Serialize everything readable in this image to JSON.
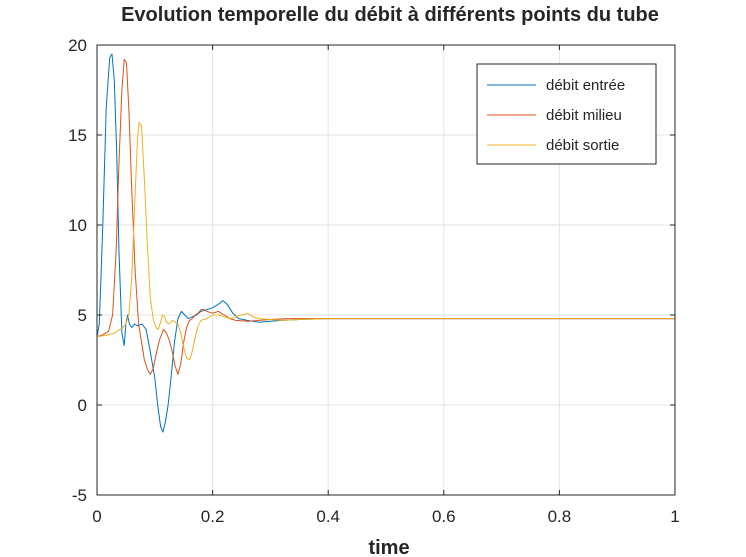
{
  "chart_data": {
    "type": "line",
    "title": "Evolution temporelle du débit à différents points du tube",
    "xlabel": "time",
    "ylabel": "",
    "xlim": [
      0,
      1
    ],
    "ylim": [
      -5,
      20
    ],
    "xticks": [
      0,
      0.2,
      0.4,
      0.6,
      0.8,
      1
    ],
    "xtick_labels": [
      "0",
      "0.2",
      "0.4",
      "0.6",
      "0.8",
      "1"
    ],
    "yticks": [
      -5,
      0,
      5,
      10,
      15,
      20
    ],
    "ytick_labels": [
      "-5",
      "0",
      "5",
      "10",
      "15",
      "20"
    ],
    "grid": true,
    "legend_position": "top-right",
    "series": [
      {
        "name": "débit entrée",
        "color": "#0072BD",
        "x": [
          0,
          0.004,
          0.01,
          0.016,
          0.022,
          0.026,
          0.03,
          0.034,
          0.038,
          0.043,
          0.047,
          0.05,
          0.053,
          0.056,
          0.06,
          0.065,
          0.07,
          0.078,
          0.085,
          0.092,
          0.1,
          0.105,
          0.11,
          0.114,
          0.118,
          0.123,
          0.128,
          0.134,
          0.14,
          0.146,
          0.152,
          0.158,
          0.165,
          0.172,
          0.18,
          0.19,
          0.2,
          0.21,
          0.218,
          0.225,
          0.235,
          0.245,
          0.26,
          0.28,
          0.3,
          0.32,
          0.35,
          0.4,
          0.5,
          0.7,
          1.0
        ],
        "y": [
          3.8,
          4.5,
          10.0,
          16.5,
          19.3,
          19.5,
          18.0,
          14.0,
          8.5,
          4.0,
          3.3,
          4.5,
          5.0,
          4.5,
          4.3,
          4.5,
          4.4,
          4.5,
          4.2,
          3.0,
          1.5,
          0.0,
          -1.2,
          -1.5,
          -1.0,
          0.0,
          1.5,
          3.5,
          4.8,
          5.2,
          5.0,
          4.8,
          4.9,
          5.0,
          5.2,
          5.3,
          5.4,
          5.6,
          5.8,
          5.6,
          5.1,
          4.8,
          4.7,
          4.6,
          4.65,
          4.7,
          4.75,
          4.8,
          4.8,
          4.8,
          4.8
        ]
      },
      {
        "name": "débit milieu",
        "color": "#D95319",
        "x": [
          0,
          0.01,
          0.02,
          0.027,
          0.033,
          0.038,
          0.043,
          0.047,
          0.051,
          0.055,
          0.06,
          0.066,
          0.072,
          0.077,
          0.082,
          0.087,
          0.092,
          0.097,
          0.102,
          0.108,
          0.115,
          0.12,
          0.125,
          0.13,
          0.135,
          0.14,
          0.145,
          0.15,
          0.155,
          0.16,
          0.165,
          0.17,
          0.175,
          0.18,
          0.185,
          0.19,
          0.2,
          0.21,
          0.22,
          0.23,
          0.24,
          0.26,
          0.28,
          0.3,
          0.33,
          0.36,
          0.4,
          0.5,
          0.7,
          1.0
        ],
        "y": [
          3.8,
          3.9,
          4.1,
          5.0,
          8.5,
          13.5,
          17.5,
          19.2,
          19.0,
          16.5,
          12.0,
          7.5,
          4.5,
          3.5,
          2.5,
          2.0,
          1.7,
          2.0,
          2.8,
          3.6,
          4.2,
          4.0,
          3.6,
          3.0,
          2.2,
          1.7,
          2.3,
          3.5,
          4.3,
          4.7,
          4.8,
          5.0,
          5.1,
          5.3,
          5.3,
          5.2,
          5.1,
          5.2,
          5.0,
          4.8,
          4.7,
          4.65,
          4.7,
          4.75,
          4.8,
          4.8,
          4.8,
          4.8,
          4.8,
          4.8
        ]
      },
      {
        "name": "débit sortie",
        "color": "#EDB120",
        "x": [
          0,
          0.01,
          0.02,
          0.03,
          0.04,
          0.045,
          0.05,
          0.055,
          0.06,
          0.065,
          0.07,
          0.073,
          0.077,
          0.082,
          0.087,
          0.092,
          0.097,
          0.102,
          0.106,
          0.11,
          0.113,
          0.117,
          0.12,
          0.125,
          0.13,
          0.135,
          0.14,
          0.145,
          0.15,
          0.155,
          0.16,
          0.165,
          0.17,
          0.175,
          0.18,
          0.19,
          0.2,
          0.21,
          0.22,
          0.23,
          0.24,
          0.25,
          0.26,
          0.27,
          0.28,
          0.3,
          0.32,
          0.35,
          0.4,
          0.5,
          0.7,
          1.0
        ],
        "y": [
          3.8,
          3.85,
          3.9,
          4.0,
          4.2,
          4.3,
          4.5,
          5.0,
          7.0,
          11.0,
          14.8,
          15.7,
          15.5,
          12.5,
          9.0,
          6.0,
          4.8,
          4.3,
          4.2,
          4.6,
          5.0,
          4.9,
          4.6,
          4.5,
          4.7,
          4.6,
          4.5,
          4.0,
          3.2,
          2.6,
          2.5,
          3.0,
          3.8,
          4.4,
          4.7,
          4.8,
          5.0,
          5.0,
          4.9,
          4.8,
          4.9,
          5.0,
          5.1,
          4.9,
          4.8,
          4.75,
          4.7,
          4.75,
          4.8,
          4.8,
          4.8,
          4.8
        ]
      }
    ]
  }
}
